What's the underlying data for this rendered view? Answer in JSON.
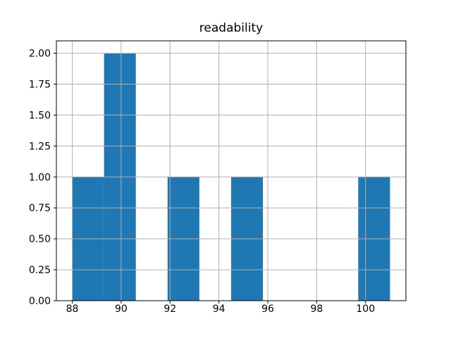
{
  "figure": {
    "title": "readability"
  },
  "chart_data": {
    "type": "bar",
    "subtype": "histogram",
    "title": "readability",
    "xlabel": "",
    "ylabel": "",
    "bins": [
      {
        "x0": 88.0,
        "x1": 89.3,
        "count": 1
      },
      {
        "x0": 89.3,
        "x1": 90.6,
        "count": 2
      },
      {
        "x0": 90.6,
        "x1": 91.9,
        "count": 0
      },
      {
        "x0": 91.9,
        "x1": 93.2,
        "count": 1
      },
      {
        "x0": 93.2,
        "x1": 94.5,
        "count": 0
      },
      {
        "x0": 94.5,
        "x1": 95.8,
        "count": 1
      },
      {
        "x0": 95.8,
        "x1": 97.1,
        "count": 0
      },
      {
        "x0": 97.1,
        "x1": 98.4,
        "count": 0
      },
      {
        "x0": 98.4,
        "x1": 99.7,
        "count": 0
      },
      {
        "x0": 99.7,
        "x1": 101.0,
        "count": 1
      }
    ],
    "xlim": [
      87.35,
      101.65
    ],
    "ylim": [
      0,
      2.1
    ],
    "xticks": {
      "values": [
        88,
        90,
        92,
        94,
        96,
        98,
        100
      ],
      "labels": [
        "88",
        "90",
        "92",
        "94",
        "96",
        "98",
        "100"
      ]
    },
    "yticks": {
      "values": [
        0,
        0.25,
        0.5,
        0.75,
        1.0,
        1.25,
        1.5,
        1.75,
        2.0
      ],
      "labels": [
        "0.00",
        "0.25",
        "0.50",
        "0.75",
        "1.00",
        "1.25",
        "1.50",
        "1.75",
        "2.00"
      ]
    },
    "grid": true,
    "legend": null,
    "colors": {
      "bar": "#1f77b4",
      "grid": "#b0b0b0",
      "axes": "#000000",
      "background": "#ffffff",
      "text": "#000000"
    }
  }
}
